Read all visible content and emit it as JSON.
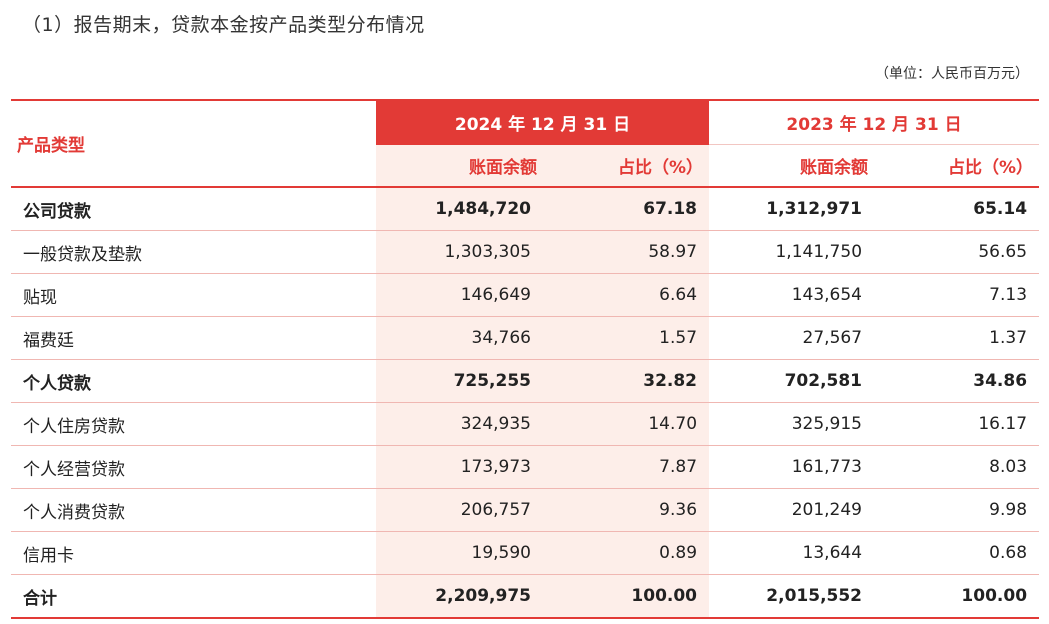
{
  "title": "（1）报告期末，贷款本金按产品类型分布情况",
  "unit": "（单位：人民币百万元）",
  "header": {
    "product_type": "产品类型",
    "year_2024": "2024 年 12 月 31 日",
    "year_2023": "2023 年 12 月 31 日",
    "balance": "账面余额",
    "ratio": "占比（%）"
  },
  "rows": [
    {
      "name": "公司贷款",
      "b24": "1,484,720",
      "r24": "67.18",
      "b23": "1,312,971",
      "r23": "65.14"
    },
    {
      "name": "一般贷款及垫款",
      "b24": "1,303,305",
      "r24": "58.97",
      "b23": "1,141,750",
      "r23": "56.65"
    },
    {
      "name": "贴现",
      "b24": "146,649",
      "r24": "6.64",
      "b23": "143,654",
      "r23": "7.13"
    },
    {
      "name": "福费廷",
      "b24": "34,766",
      "r24": "1.57",
      "b23": "27,567",
      "r23": "1.37"
    },
    {
      "name": "个人贷款",
      "b24": "725,255",
      "r24": "32.82",
      "b23": "702,581",
      "r23": "34.86"
    },
    {
      "name": "个人住房贷款",
      "b24": "324,935",
      "r24": "14.70",
      "b23": "325,915",
      "r23": "16.17"
    },
    {
      "name": "个人经营贷款",
      "b24": "173,973",
      "r24": "7.87",
      "b23": "161,773",
      "r23": "8.03"
    },
    {
      "name": "个人消费贷款",
      "b24": "206,757",
      "r24": "9.36",
      "b23": "201,249",
      "r23": "9.98"
    },
    {
      "name": "信用卡",
      "b24": "19,590",
      "r24": "0.89",
      "b23": "13,644",
      "r23": "0.68"
    },
    {
      "name": "合计",
      "b24": "2,209,975",
      "r24": "100.00",
      "b23": "2,015,552",
      "r23": "100.00"
    }
  ],
  "colors": {
    "accent": "#e23a36",
    "highlight_column": "#fdeee9"
  }
}
